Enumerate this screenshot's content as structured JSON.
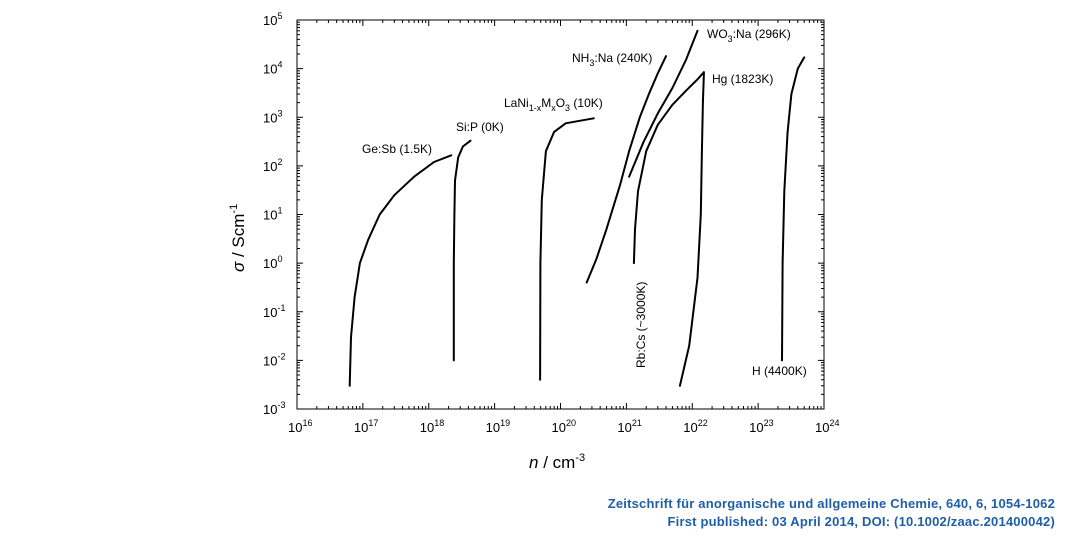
{
  "chart_data": {
    "type": "line",
    "xlabel": "n / cm-3",
    "ylabel": "σ / Scm-1",
    "xscale": "log",
    "yscale": "log",
    "xlim": [
      1e+16,
      1e+24
    ],
    "ylim": [
      0.001,
      100000
    ],
    "x_tick_labels": [
      "10^16",
      "10^17",
      "10^18",
      "10^19",
      "10^20",
      "10^21",
      "10^22",
      "10^23",
      "10^24"
    ],
    "y_tick_labels": [
      "10^-3",
      "10^-2",
      "10^-1",
      "10^0",
      "10^1",
      "10^2",
      "10^3",
      "10^4",
      "10^5"
    ],
    "grid": false,
    "series": [
      {
        "name": "Ge:Sb (1.5K)",
        "x": [
          6.3e+16,
          6.6e+16,
          7.5e+16,
          9e+16,
          1.2e+17,
          1.8e+17,
          3e+17,
          6e+17,
          1.2e+18,
          2.2e+18
        ],
        "y": [
          0.003,
          0.03,
          0.2,
          1,
          3,
          10,
          25,
          60,
          120,
          165
        ]
      },
      {
        "name": "Si:P (0K)",
        "x": [
          2.4e+18,
          2.4e+18,
          2.45e+18,
          2.5e+18,
          2.8e+18,
          3.3e+18,
          4.3e+18
        ],
        "y": [
          0.01,
          1,
          10,
          50,
          150,
          250,
          330
        ]
      },
      {
        "name": "LaNi1-xMxO3 (10K)",
        "x": [
          4.9e+19,
          4.95e+19,
          5.2e+19,
          6e+19,
          8e+19,
          1.2e+20,
          2e+20,
          3.2e+20
        ],
        "y": [
          0.004,
          1,
          20,
          200,
          500,
          750,
          850,
          950
        ]
      },
      {
        "name": "NH3:Na (240K)",
        "x": [
          2.5e+20,
          3.5e+20,
          5e+20,
          8e+20,
          1.1e+21,
          1.6e+21,
          2.2e+21,
          3e+21,
          4e+21
        ],
        "y": [
          0.4,
          1.2,
          5,
          40,
          200,
          1000,
          3000,
          8000,
          18000
        ]
      },
      {
        "name": "WO3:Na (296K)",
        "x": [
          1.1e+21,
          1.8e+21,
          3e+21,
          5e+21,
          8e+21,
          1.2e+22
        ],
        "y": [
          60,
          300,
          1200,
          4000,
          15000,
          60000
        ]
      },
      {
        "name": "Rb:Cs (~3000K)",
        "x": [
          1.3e+21,
          1.35e+21,
          1.5e+21,
          2e+21,
          3e+21,
          5e+21,
          8e+21,
          1.2e+22,
          1.5e+22
        ],
        "y": [
          1,
          5,
          30,
          200,
          700,
          1800,
          3500,
          6000,
          8500
        ]
      },
      {
        "name": "Hg (1823K)",
        "x": [
          6.5e+21,
          9e+21,
          1.2e+22,
          1.35e+22,
          1.4e+22,
          1.45e+22,
          1.5e+22
        ],
        "y": [
          0.003,
          0.02,
          0.5,
          10,
          200,
          2000,
          8000
        ]
      },
      {
        "name": "H (4400K)",
        "x": [
          2.3e+23,
          2.35e+23,
          2.5e+23,
          2.8e+23,
          3.2e+23,
          4e+23,
          5e+23
        ],
        "y": [
          0.01,
          1,
          30,
          500,
          3000,
          10000,
          17000
        ]
      }
    ]
  },
  "labels": {
    "gesb": "Ge:Sb (1.5K)",
    "sip": "Si:P (0K)",
    "lani": "LaNi",
    "lani_sub1": "1-x",
    "lani_m": "M",
    "lani_sub2": "x",
    "lani_o": "O",
    "lani_sub3": "3",
    "lani_temp": " (10K)",
    "nh3_a": "NH",
    "nh3_sub": "3",
    "nh3_b": ":Na (240K)",
    "wo3_a": "WO",
    "wo3_sub": "3",
    "wo3_b": ":Na (296K)",
    "hg": "Hg (1823K)",
    "rbcs": "Rb:Cs (~3000K)",
    "h": "H (4400K)"
  },
  "axes": {
    "x_title_main": "n",
    "x_title_rest": " / cm",
    "x_title_sup": "-3",
    "y_title_main": "σ",
    "y_title_rest": "  / Scm",
    "y_title_sup": "-1",
    "tick_base": "10",
    "x_exps": [
      "16",
      "17",
      "18",
      "19",
      "20",
      "21",
      "22",
      "23",
      "24"
    ],
    "y_exps": [
      "-3",
      "-2",
      "-1",
      "0",
      "1",
      "2",
      "3",
      "4",
      "5"
    ]
  },
  "citation": {
    "line1": "Zeitschrift für anorganische  und allgemeine  Chemie,  640,  6, 1054-1062",
    "line2": "First published:  03 April  2014,  DOI: (10.1002/zaac.201400042)"
  }
}
